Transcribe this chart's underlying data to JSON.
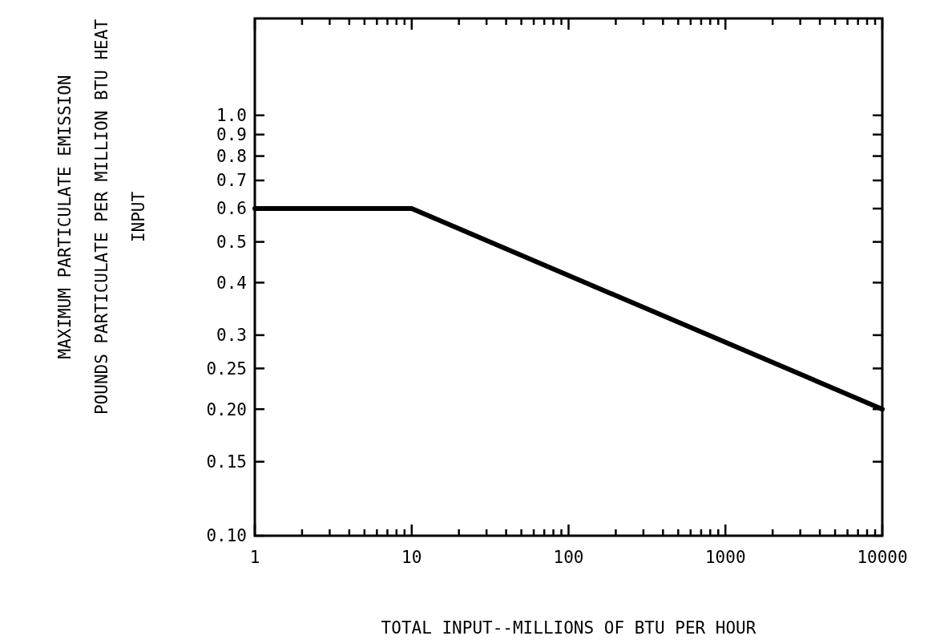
{
  "chart_data": {
    "type": "line",
    "xlabel": "TOTAL INPUT--MILLIONS OF BTU PER HOUR",
    "ylabel": "MAXIMUM PARTICULATE EMISSION\nPOUNDS PARTICULATE PER MILLION BTU HEAT\nINPUT",
    "log": "xy",
    "grid": false,
    "marker": "none",
    "line_style": "solid",
    "xlim": [
      1,
      10000
    ],
    "ylim": [
      0.1,
      1.7
    ],
    "xticks": [
      1,
      {
        "value": 2,
        "label": null
      },
      {
        "value": 3,
        "label": null
      },
      {
        "value": 4,
        "label": null
      },
      {
        "value": 5,
        "label": null
      },
      {
        "value": 6,
        "label": null
      },
      {
        "value": 7,
        "label": null
      },
      {
        "value": 8,
        "label": null
      },
      {
        "value": 9,
        "label": null
      },
      10,
      {
        "value": 20,
        "label": null
      },
      {
        "value": 30,
        "label": null
      },
      {
        "value": 40,
        "label": null
      },
      {
        "value": 50,
        "label": null
      },
      {
        "value": 60,
        "label": null
      },
      {
        "value": 70,
        "label": null
      },
      {
        "value": 80,
        "label": null
      },
      {
        "value": 90,
        "label": null
      },
      100,
      {
        "value": 200,
        "label": null
      },
      {
        "value": 300,
        "label": null
      },
      {
        "value": 400,
        "label": null
      },
      {
        "value": 500,
        "label": null
      },
      {
        "value": 600,
        "label": null
      },
      {
        "value": 700,
        "label": null
      },
      {
        "value": 800,
        "label": null
      },
      {
        "value": 900,
        "label": null
      },
      1000,
      {
        "value": 2000,
        "label": null
      },
      {
        "value": 3000,
        "label": null
      },
      {
        "value": 4000,
        "label": null
      },
      {
        "value": 5000,
        "label": null
      },
      {
        "value": 6000,
        "label": null
      },
      {
        "value": 7000,
        "label": null
      },
      {
        "value": 8000,
        "label": null
      },
      {
        "value": 9000,
        "label": null
      },
      10000
    ],
    "yticks": [
      {
        "value": 0.1,
        "label": "0.10"
      },
      0.15,
      {
        "value": 0.2,
        "label": "0.20"
      },
      0.25,
      0.3,
      0.4,
      0.5,
      0.6,
      0.7,
      0.8,
      0.9,
      {
        "value": 1,
        "label": "1.0"
      }
    ],
    "series": [
      {
        "color": "#000000",
        "x": [
          1,
          10,
          10000
        ],
        "values": [
          0.6,
          0.6,
          0.2
        ]
      }
    ]
  }
}
